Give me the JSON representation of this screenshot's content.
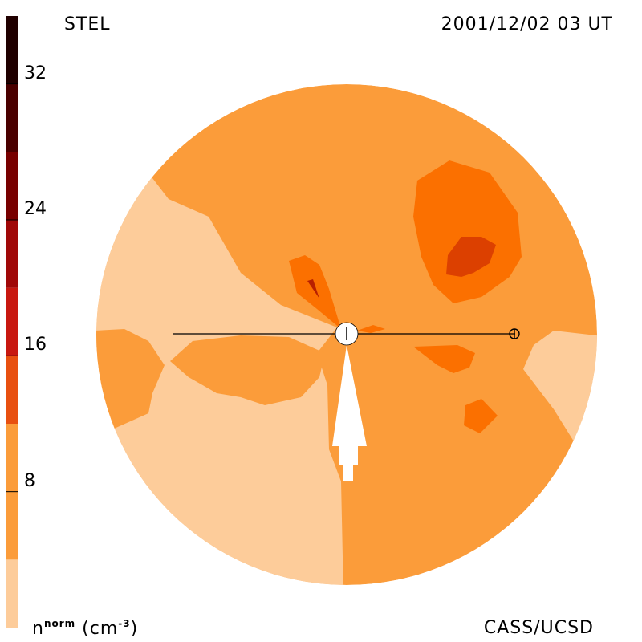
{
  "header": {
    "source_label": "STEL",
    "timestamp": "2001/12/02 03 UT"
  },
  "footer": {
    "quantity_label": "n",
    "quantity_superscript": "norm",
    "unit_open": " (cm",
    "unit_superscript": "-3",
    "unit_close": ")",
    "credit": "CASS/UCSD"
  },
  "colorbar": {
    "min": 0,
    "max": 36,
    "ticks": [
      {
        "value": 8,
        "label": "8"
      },
      {
        "value": 16,
        "label": "16"
      },
      {
        "value": 24,
        "label": "24"
      },
      {
        "value": 32,
        "label": "32"
      }
    ],
    "bands": [
      {
        "from": 0,
        "to": 4,
        "color": "#fdcc9a"
      },
      {
        "from": 4,
        "to": 12,
        "color": "#fb9c3a"
      },
      {
        "from": 12,
        "to": 16,
        "color": "#e85010"
      },
      {
        "from": 16,
        "to": 20,
        "color": "#c81810"
      },
      {
        "from": 20,
        "to": 24,
        "color": "#a00808"
      },
      {
        "from": 24,
        "to": 28,
        "color": "#780000"
      },
      {
        "from": 28,
        "to": 32,
        "color": "#4a0000"
      },
      {
        "from": 32,
        "to": 36,
        "color": "#200000"
      }
    ]
  },
  "map_colors": {
    "light": "#fdcc9a",
    "base": "#fb9c3a",
    "mid": "#fb7000",
    "high": "#dc4000",
    "peak": "#b82000"
  }
}
